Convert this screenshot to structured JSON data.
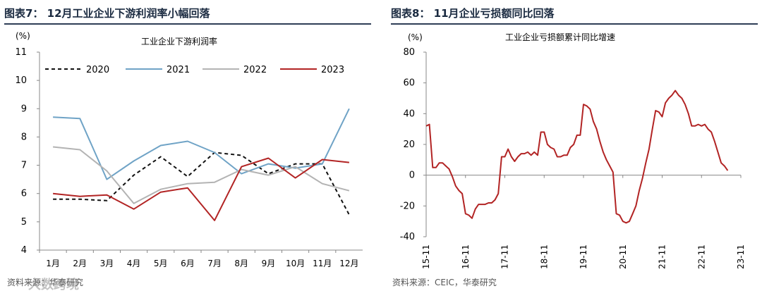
{
  "left": {
    "title": "图表7： 12月工业企业下游利润率小幅回落",
    "source": "资料来源：华泰研究",
    "watermark": "大数跨境",
    "chart_data": {
      "type": "line",
      "title": "工业企业下游利润率",
      "ylabel": "(%)",
      "ylim": [
        4,
        11
      ],
      "yticks": [
        4,
        5,
        6,
        7,
        8,
        9,
        10,
        11
      ],
      "categories": [
        "1月",
        "2月",
        "3月",
        "4月",
        "5月",
        "6月",
        "7月",
        "8月",
        "9月",
        "10月",
        "11月",
        "12月"
      ],
      "legend_position": "top",
      "series": [
        {
          "name": "2020",
          "color": "#111111",
          "dash": true,
          "values": [
            5.8,
            5.8,
            5.75,
            6.65,
            7.3,
            6.6,
            7.45,
            7.35,
            6.7,
            7.05,
            7.05,
            5.25
          ]
        },
        {
          "name": "2021",
          "color": "#6fa3c6",
          "dash": false,
          "values": [
            8.7,
            8.65,
            6.5,
            7.15,
            7.7,
            7.85,
            7.45,
            6.7,
            7.05,
            6.9,
            7.05,
            9.0
          ]
        },
        {
          "name": "2022",
          "color": "#b3b3b3",
          "dash": false,
          "values": [
            7.65,
            7.55,
            6.8,
            5.65,
            6.15,
            6.35,
            6.4,
            6.85,
            6.65,
            6.95,
            6.35,
            6.1
          ]
        },
        {
          "name": "2023",
          "color": "#b22424",
          "dash": false,
          "values": [
            6.0,
            5.9,
            5.95,
            5.45,
            6.05,
            6.2,
            5.05,
            6.95,
            7.25,
            6.55,
            7.2,
            7.1
          ]
        }
      ]
    }
  },
  "right": {
    "title": "图表8： 11月企业亏损额同比回落",
    "source": "资料来源：CEIC，华泰研究",
    "chart_data": {
      "type": "line",
      "title": "工业企业亏损额累计同比增速",
      "ylabel": "(%)",
      "ylim": [
        -40,
        80
      ],
      "yticks": [
        -40,
        -20,
        0,
        20,
        40,
        60,
        80
      ],
      "xlabels": [
        "15-11",
        "16-11",
        "17-11",
        "18-11",
        "19-11",
        "20-11",
        "21-11",
        "22-11",
        "23-11"
      ],
      "x_start": "2015-11",
      "color": "#b22424",
      "values": [
        32,
        33,
        5,
        5,
        8,
        8,
        6,
        4,
        -1,
        -7,
        -10,
        -12,
        -25,
        -26,
        -28,
        -22,
        -19,
        -19,
        -19,
        -18,
        -18,
        -16,
        -12,
        12,
        12,
        17,
        12,
        9,
        12,
        14,
        14,
        15,
        13,
        15,
        13,
        28,
        28,
        20,
        18,
        17,
        12,
        12,
        13,
        13,
        18,
        20,
        26,
        26,
        46,
        45,
        43,
        35,
        30,
        22,
        15,
        10,
        6,
        2,
        -25,
        -26,
        -30,
        -31,
        -30,
        -25,
        -20,
        -10,
        -2,
        8,
        17,
        30,
        42,
        41,
        38,
        47,
        50,
        52,
        55,
        52,
        50,
        46,
        40,
        32,
        32,
        33,
        32,
        33,
        30,
        28,
        22,
        15,
        8,
        6,
        3
      ]
    }
  }
}
